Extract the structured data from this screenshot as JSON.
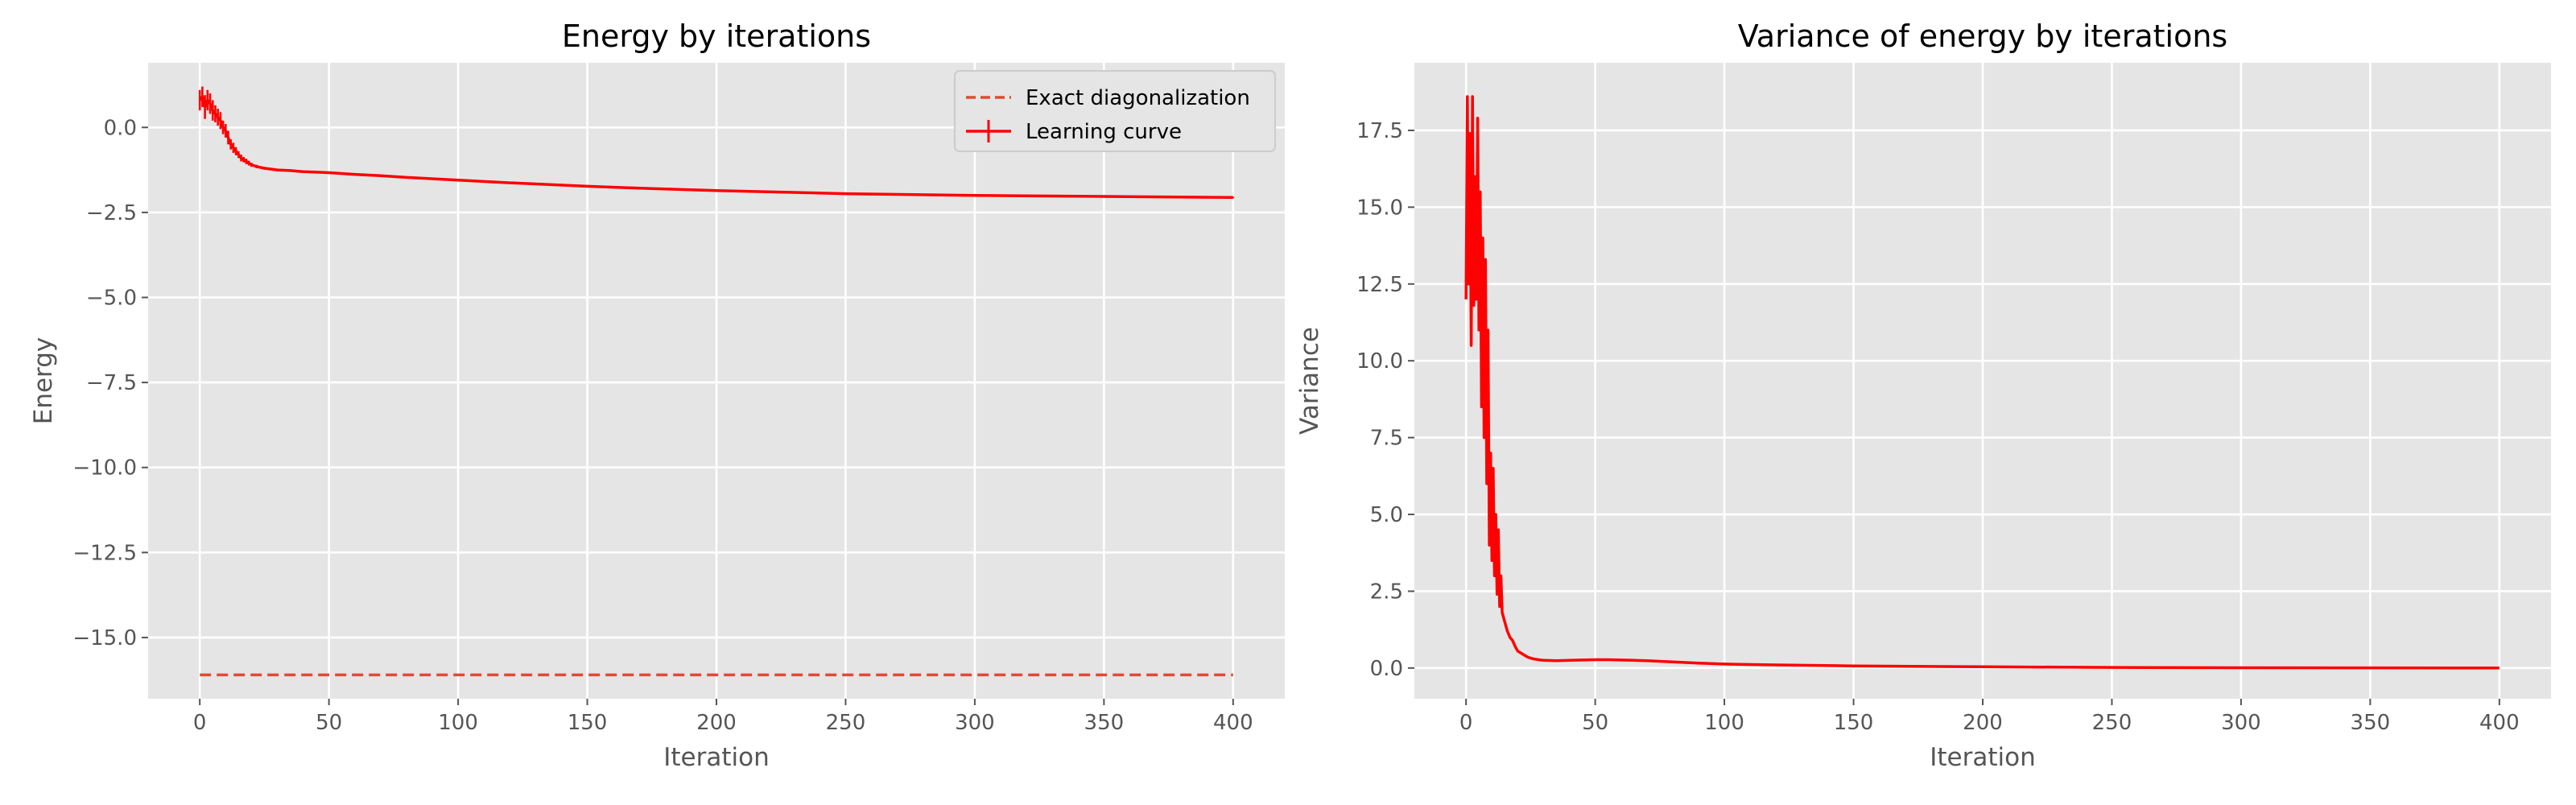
{
  "chart_data": [
    {
      "type": "line",
      "title": "Energy by iterations",
      "xlabel": "Iteration",
      "ylabel": "Energy",
      "xlim": [
        -20,
        420
      ],
      "ylim": [
        -16.8,
        1.9
      ],
      "xticks": [
        0,
        50,
        100,
        150,
        200,
        250,
        300,
        350,
        400
      ],
      "yticks": [
        0.0,
        -2.5,
        -5.0,
        -7.5,
        -10.0,
        -12.5,
        -15.0
      ],
      "ytick_labels": [
        "0.0",
        "−2.5",
        "−5.0",
        "−7.5",
        "−10.0",
        "−12.5",
        "−15.0"
      ],
      "grid": true,
      "legend": {
        "position": "top-right",
        "entries": [
          "Exact diagonalization",
          "Learning curve"
        ]
      },
      "series": [
        {
          "name": "Exact diagonalization",
          "style": "dashed",
          "color": "#e24a33",
          "x": [
            0,
            400
          ],
          "y": [
            -16.1,
            -16.1
          ]
        },
        {
          "name": "Learning curve",
          "style": "solid-errorbar",
          "color": "#ff0000",
          "x": [
            0,
            1,
            2,
            3,
            4,
            5,
            6,
            7,
            8,
            9,
            10,
            11,
            12,
            13,
            14,
            15,
            16,
            17,
            18,
            19,
            20,
            22,
            25,
            30,
            35,
            40,
            50,
            60,
            70,
            80,
            100,
            120,
            150,
            175,
            200,
            250,
            300,
            350,
            400
          ],
          "y": [
            0.8,
            0.9,
            0.6,
            0.8,
            0.7,
            0.5,
            0.4,
            0.3,
            0.2,
            0.0,
            -0.1,
            -0.3,
            -0.5,
            -0.6,
            -0.7,
            -0.8,
            -0.9,
            -0.95,
            -1.0,
            -1.05,
            -1.1,
            -1.15,
            -1.2,
            -1.25,
            -1.27,
            -1.3,
            -1.33,
            -1.38,
            -1.42,
            -1.47,
            -1.55,
            -1.63,
            -1.73,
            -1.8,
            -1.86,
            -1.95,
            -2.0,
            -2.03,
            -2.06
          ],
          "err": [
            0.3,
            0.3,
            0.35,
            0.3,
            0.3,
            0.3,
            0.25,
            0.25,
            0.25,
            0.2,
            0.2,
            0.2,
            0.15,
            0.15,
            0.12,
            0.1,
            0.1,
            0.08,
            0.08,
            0.07,
            0.06,
            0.05,
            0.04,
            0.03,
            0.03,
            0.03,
            0.02,
            0.02,
            0.02,
            0.02,
            0.02,
            0.02,
            0.02,
            0.02,
            0.02,
            0.02,
            0.02,
            0.02,
            0.02
          ]
        }
      ]
    },
    {
      "type": "line",
      "title": "Variance of energy by iterations",
      "xlabel": "Iteration",
      "ylabel": "Variance",
      "xlim": [
        -20,
        420
      ],
      "ylim": [
        -1.0,
        19.7
      ],
      "xticks": [
        0,
        50,
        100,
        150,
        200,
        250,
        300,
        350,
        400
      ],
      "yticks": [
        0.0,
        2.5,
        5.0,
        7.5,
        10.0,
        12.5,
        15.0,
        17.5
      ],
      "ytick_labels": [
        "0.0",
        "2.5",
        "5.0",
        "7.5",
        "10.0",
        "12.5",
        "15.0",
        "17.5"
      ],
      "grid": true,
      "series": [
        {
          "style": "solid",
          "color": "#ff0000",
          "x": [
            0,
            0.5,
            1,
            1.5,
            2,
            2.5,
            3,
            3.5,
            4,
            4.5,
            5,
            5.5,
            6,
            6.5,
            7,
            7.5,
            8,
            8.5,
            9,
            9.5,
            10,
            10.5,
            11,
            11.5,
            12,
            12.5,
            13,
            13.5,
            14,
            15,
            16,
            17,
            18,
            19,
            20,
            22,
            24,
            26,
            28,
            30,
            35,
            40,
            45,
            50,
            55,
            60,
            65,
            70,
            80,
            90,
            100,
            120,
            150,
            200,
            250,
            300,
            350,
            400
          ],
          "y": [
            12.0,
            18.6,
            12.5,
            17.4,
            10.5,
            18.6,
            11.8,
            16.0,
            12.0,
            17.9,
            11.0,
            15.5,
            8.5,
            14.0,
            7.5,
            13.3,
            6.0,
            11.0,
            4.0,
            7.0,
            3.5,
            6.5,
            3.0,
            5.0,
            2.4,
            4.5,
            2.0,
            3.0,
            1.8,
            1.5,
            1.2,
            1.0,
            0.9,
            0.7,
            0.55,
            0.45,
            0.35,
            0.3,
            0.27,
            0.25,
            0.24,
            0.25,
            0.26,
            0.27,
            0.27,
            0.26,
            0.25,
            0.24,
            0.2,
            0.16,
            0.13,
            0.1,
            0.07,
            0.04,
            0.02,
            0.01,
            0.005,
            0.0
          ]
        }
      ]
    }
  ]
}
